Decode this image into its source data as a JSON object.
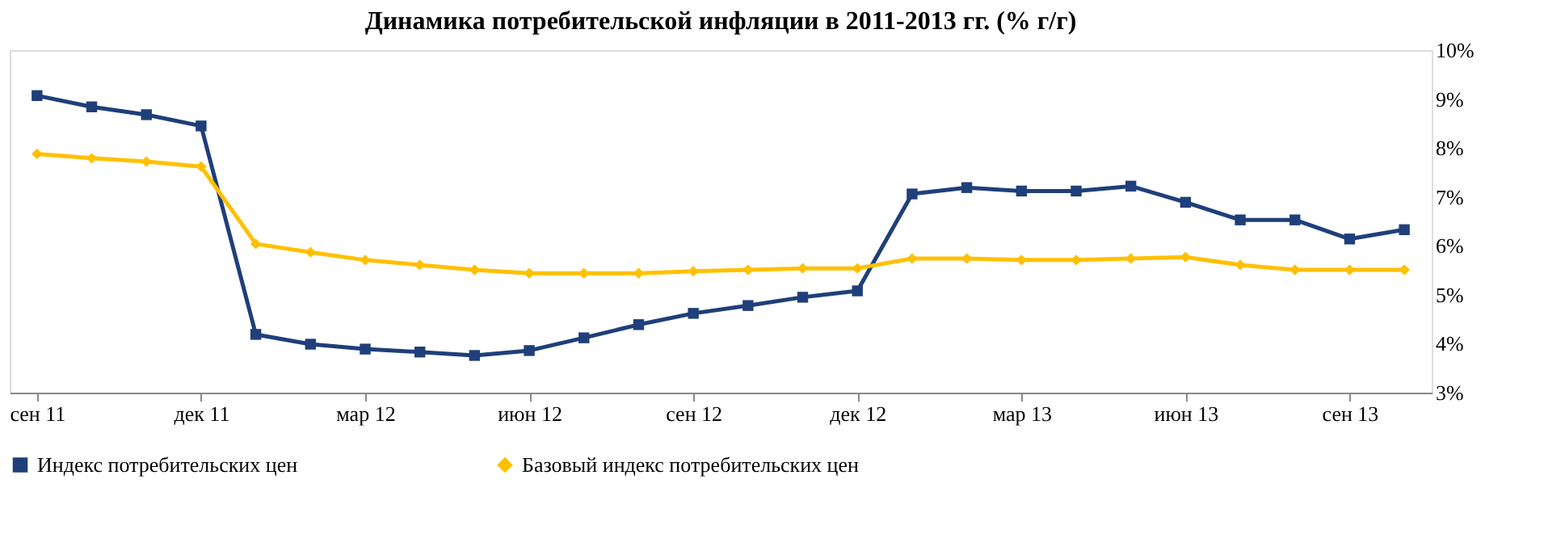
{
  "chart_data": {
    "type": "line",
    "title": "Динамика потребительской инфляции в 2011-2013 гг. (% г/г)",
    "categories": [
      "сен 11",
      null,
      null,
      "дек 11",
      null,
      null,
      "мар 12",
      null,
      null,
      "июн 12",
      null,
      null,
      "сен 12",
      null,
      null,
      "дек 12",
      null,
      null,
      "мар 13",
      null,
      null,
      "июн 13",
      null,
      null,
      "сен 13",
      null
    ],
    "series": [
      {
        "name": "Индекс потребительских цен",
        "color": "#1f3f7a",
        "marker": "square",
        "values": [
          9.07,
          8.84,
          8.68,
          8.45,
          4.19,
          3.99,
          3.89,
          3.83,
          3.76,
          3.86,
          4.12,
          4.39,
          4.62,
          4.78,
          4.95,
          5.08,
          7.06,
          7.19,
          7.12,
          7.12,
          7.22,
          6.89,
          6.53,
          6.53,
          6.14,
          6.33
        ]
      },
      {
        "name": "Базовый индекс потребительских цен",
        "color": "#ffc000",
        "marker": "diamond",
        "values": [
          7.88,
          7.79,
          7.72,
          7.62,
          6.04,
          5.87,
          5.71,
          5.61,
          5.51,
          5.44,
          5.44,
          5.44,
          5.48,
          5.51,
          5.54,
          5.54,
          5.74,
          5.74,
          5.71,
          5.71,
          5.74,
          5.77,
          5.61,
          5.51,
          5.51,
          5.51
        ]
      }
    ],
    "ylim": [
      3,
      10
    ],
    "yticks": [
      {
        "value": 3,
        "label": "3%"
      },
      {
        "value": 4,
        "label": "4%"
      },
      {
        "value": 5,
        "label": "5%"
      },
      {
        "value": 6,
        "label": "6%"
      },
      {
        "value": 7,
        "label": "7%"
      },
      {
        "value": 8,
        "label": "8%"
      },
      {
        "value": 9,
        "label": "9%"
      },
      {
        "value": 10,
        "label": "10%"
      }
    ],
    "grid": false,
    "legend": "bottom",
    "line_style": "solid"
  }
}
